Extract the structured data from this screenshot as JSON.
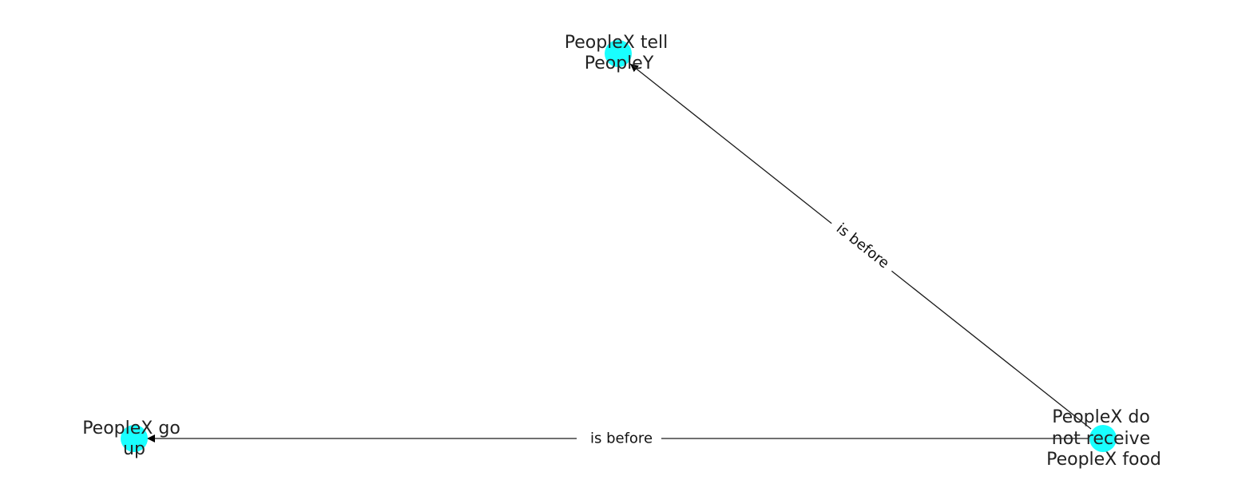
{
  "graph": {
    "nodes": [
      {
        "id": "tell",
        "label_lines": [
          "PeopleX tell",
          "PeopleY"
        ]
      },
      {
        "id": "goup",
        "label_lines": [
          "PeopleX go",
          "up"
        ]
      },
      {
        "id": "food",
        "label_lines": [
          "PeopleX do",
          "not receive",
          "PeopleX food"
        ]
      }
    ],
    "edges": [
      {
        "id": "food-to-tell",
        "source": "food",
        "target": "tell",
        "label": "is before"
      },
      {
        "id": "food-to-goup",
        "source": "food",
        "target": "goup",
        "label": "is before"
      }
    ],
    "colors": {
      "node_fill": "#00ffff",
      "edge_stroke": "#1a1a1a",
      "node_text": "#222222"
    }
  }
}
